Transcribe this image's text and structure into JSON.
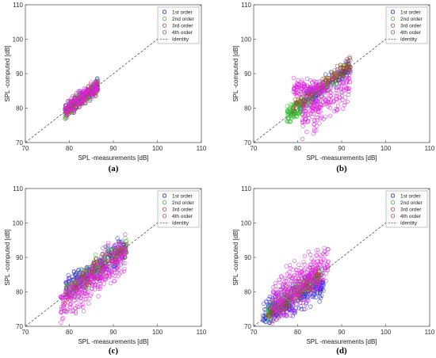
{
  "colors": {
    "1st order": "#2020e0",
    "2nd order": "#30c030",
    "3rd order": "#a0481e",
    "4th order": "#e020e0",
    "identity": "#555555"
  },
  "chart_data": [
    {
      "type": "scatter",
      "panel": "(a)",
      "xlabel": "SPL -measurements [dB]",
      "ylabel": "SPL -computed [dB]",
      "xlim": [
        70,
        110
      ],
      "ylim": [
        70,
        110
      ],
      "xticks": [
        70,
        80,
        90,
        100,
        110
      ],
      "yticks": [
        70,
        80,
        90,
        100,
        110
      ],
      "grid": false,
      "legend": {
        "position": "top-right",
        "entries": [
          "1st order",
          "2nd order",
          "3rd order",
          "4th order",
          "Identity"
        ]
      },
      "series": [
        {
          "name": "1st order",
          "marker": "circle",
          "clusters": [
            {
              "x": [
                79,
                86.5
              ],
              "y_intercept": 0,
              "slope": 1,
              "spread": 1.0,
              "n": 140
            }
          ]
        },
        {
          "name": "2nd order",
          "marker": "circle",
          "clusters": [
            {
              "x": [
                79,
                86.5
              ],
              "y_intercept": 0,
              "slope": 1,
              "spread": 1.0,
              "n": 140
            }
          ]
        },
        {
          "name": "3rd order",
          "marker": "circle",
          "clusters": [
            {
              "x": [
                79,
                86.5
              ],
              "y_intercept": 0,
              "slope": 1,
              "spread": 1.0,
              "n": 140
            }
          ]
        },
        {
          "name": "4th order",
          "marker": "circle",
          "clusters": [
            {
              "x": [
                79,
                86.5
              ],
              "y_intercept": 0,
              "slope": 1,
              "spread": 1.1,
              "n": 160
            }
          ]
        },
        {
          "name": "Identity",
          "line": "dashed",
          "from": [
            70,
            70
          ],
          "to": [
            110,
            110
          ]
        }
      ]
    },
    {
      "type": "scatter",
      "panel": "(b)",
      "xlabel": "SPL -measurements [dB]",
      "ylabel": "SPL -computed [dB]",
      "xlim": [
        70,
        110
      ],
      "ylim": [
        70,
        110
      ],
      "xticks": [
        70,
        80,
        90,
        100,
        110
      ],
      "yticks": [
        70,
        80,
        90,
        100,
        110
      ],
      "grid": false,
      "legend": {
        "position": "top-right",
        "entries": [
          "1st order",
          "2nd order",
          "3rd order",
          "4th order",
          "Identity"
        ]
      },
      "series": [
        {
          "name": "1st order",
          "marker": "circle",
          "clusters": [
            {
              "x": [
                80,
                92
              ],
              "y_intercept": 2,
              "slope": 0.98,
              "spread": 1.3,
              "n": 130
            }
          ]
        },
        {
          "name": "2nd order",
          "marker": "circle",
          "clusters": [
            {
              "x": [
                77.5,
                81
              ],
              "y_intercept": 0,
              "slope": 1,
              "spread": 1.2,
              "n": 90
            },
            {
              "x": [
                80,
                92
              ],
              "y_intercept": 0,
              "slope": 1,
              "spread": 1.2,
              "n": 60
            }
          ]
        },
        {
          "name": "3rd order",
          "marker": "circle",
          "clusters": [
            {
              "x": [
                79,
                92
              ],
              "y_intercept": 1,
              "slope": 1,
              "spread": 1.3,
              "n": 150
            }
          ]
        },
        {
          "name": "4th order",
          "marker": "circle",
          "clusters": [
            {
              "x": [
                79,
                86
              ],
              "y_intercept": 86,
              "slope": 0,
              "spread": 1.2,
              "n": 110
            },
            {
              "x": [
                81,
                92
              ],
              "y_intercept": 4,
              "slope": 0.9,
              "spread": 2.5,
              "n": 200
            }
          ]
        },
        {
          "name": "Identity",
          "line": "dashed",
          "from": [
            70,
            70
          ],
          "to": [
            110,
            110
          ]
        }
      ]
    },
    {
      "type": "scatter",
      "panel": "(c)",
      "xlabel": "SPL -measurements [dB]",
      "ylabel": "SPL -computed [dB]",
      "xlim": [
        70,
        110
      ],
      "ylim": [
        70,
        110
      ],
      "xticks": [
        70,
        80,
        90,
        100,
        110
      ],
      "yticks": [
        70,
        80,
        90,
        100,
        110
      ],
      "grid": false,
      "legend": {
        "position": "top-right",
        "entries": [
          "1st order",
          "2nd order",
          "3rd order",
          "4th order",
          "Identity"
        ]
      },
      "series": [
        {
          "name": "1st order",
          "marker": "circle",
          "clusters": [
            {
              "x": [
                79,
                93
              ],
              "y_intercept": 12,
              "slope": 0.87,
              "spread": 1.8,
              "n": 220
            }
          ]
        },
        {
          "name": "2nd order",
          "marker": "circle",
          "clusters": [
            {
              "x": [
                79,
                93
              ],
              "y_intercept": 2,
              "slope": 0.98,
              "spread": 1.6,
              "n": 160
            }
          ]
        },
        {
          "name": "3rd order",
          "marker": "circle",
          "clusters": [
            {
              "x": [
                79,
                93
              ],
              "y_intercept": 1,
              "slope": 0.99,
              "spread": 1.6,
              "n": 160
            }
          ]
        },
        {
          "name": "4th order",
          "marker": "circle",
          "clusters": [
            {
              "x": [
                78,
                93
              ],
              "y_intercept": -2,
              "slope": 1,
              "spread": 2.6,
              "n": 320
            }
          ]
        },
        {
          "name": "Identity",
          "line": "dashed",
          "from": [
            70,
            70
          ],
          "to": [
            110,
            110
          ]
        }
      ]
    },
    {
      "type": "scatter",
      "panel": "(d)",
      "xlabel": "SPL -measurements [dB]",
      "ylabel": "SPL -computed [dB]",
      "xlim": [
        70,
        110
      ],
      "ylim": [
        70,
        110
      ],
      "xticks": [
        70,
        80,
        90,
        100,
        110
      ],
      "yticks": [
        70,
        80,
        90,
        100,
        110
      ],
      "grid": false,
      "legend": {
        "position": "top-right",
        "entries": [
          "1st order",
          "2nd order",
          "3rd order",
          "4th order",
          "Identity"
        ]
      },
      "series": [
        {
          "name": "1st order",
          "marker": "circle",
          "clusters": [
            {
              "x": [
                72,
                86
              ],
              "y_intercept": 25,
              "slope": 0.67,
              "spread": 2.2,
              "n": 320
            }
          ]
        },
        {
          "name": "2nd order",
          "marker": "circle",
          "clusters": [
            {
              "x": [
                73,
                85
              ],
              "y_intercept": 2,
              "slope": 0.98,
              "spread": 1.4,
              "n": 150
            }
          ]
        },
        {
          "name": "3rd order",
          "marker": "circle",
          "clusters": [
            {
              "x": [
                73,
                85
              ],
              "y_intercept": 0,
              "slope": 1,
              "spread": 1.4,
              "n": 150
            }
          ]
        },
        {
          "name": "4th order",
          "marker": "circle",
          "clusters": [
            {
              "x": [
                74,
                87
              ],
              "y_intercept": 6,
              "slope": 0.95,
              "spread": 3.2,
              "n": 340
            }
          ]
        },
        {
          "name": "Identity",
          "line": "dashed",
          "from": [
            70,
            70
          ],
          "to": [
            110,
            110
          ]
        }
      ]
    }
  ]
}
